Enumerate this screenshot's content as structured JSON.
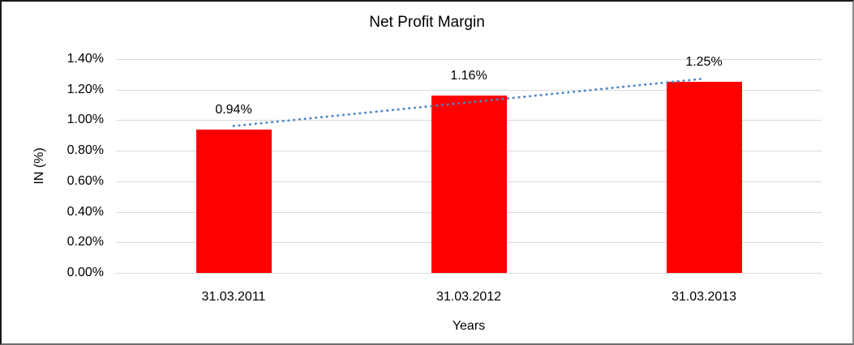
{
  "chart_data": {
    "type": "bar",
    "title": "Net Profit Margin",
    "xlabel": "Years",
    "ylabel": "IN (%)",
    "categories": [
      "31.03.2011",
      "31.03.2012",
      "31.03.2013"
    ],
    "values": [
      0.94,
      1.16,
      1.25
    ],
    "data_labels": [
      "0.94%",
      "1.16%",
      "1.25%"
    ],
    "ylim": [
      0,
      1.4
    ],
    "ytick_step": 0.2,
    "ytick_labels": [
      "0.00%",
      "0.20%",
      "0.40%",
      "0.60%",
      "0.80%",
      "1.00%",
      "1.20%",
      "1.40%"
    ],
    "grid": true,
    "legend": "none",
    "bar_color": "#ff0000",
    "gridline_color": "#d9d9d9",
    "trendline": {
      "style": "dotted",
      "color": "#4a86c8",
      "start_value": 0.962,
      "end_value": 1.272
    }
  }
}
